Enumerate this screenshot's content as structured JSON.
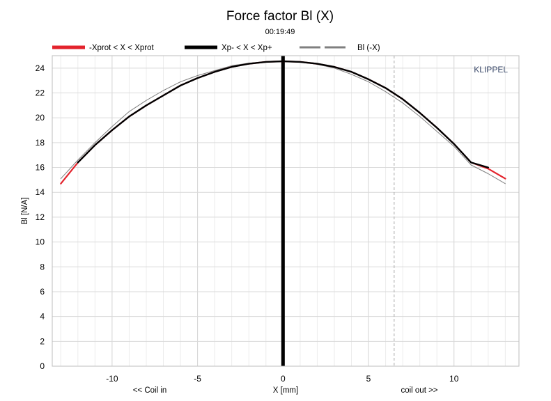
{
  "chart_data": {
    "type": "line",
    "title": "Force factor Bl (X)",
    "subtitle": "00:19:49",
    "brand": "KLIPPEL",
    "xlabel": "X [mm]",
    "ylabel": "Bl [N/A]",
    "x_left_note": "<< Coil in",
    "x_right_note": "coil out >>",
    "xlim": [
      -13.5,
      13.8
    ],
    "ylim": [
      0,
      25
    ],
    "xticks": [
      -10,
      -5,
      0,
      5,
      10
    ],
    "yticks": [
      0,
      2,
      4,
      6,
      8,
      10,
      12,
      14,
      16,
      18,
      20,
      22,
      24
    ],
    "grid": true,
    "legend_position": "top",
    "markers": [
      {
        "x": 0,
        "color": "#000000",
        "style": "solid"
      },
      {
        "x": 6.5,
        "color": "#aaaaaa",
        "style": "dashed"
      }
    ],
    "series": [
      {
        "name": "-Xprot < X < Xprot",
        "color": "#e3232c",
        "x": [
          -13,
          -12,
          -11,
          -10,
          -9,
          -8,
          -7,
          -6,
          -5,
          -4,
          -3,
          -2,
          -1,
          0,
          1,
          2,
          3,
          4,
          5,
          6,
          7,
          8,
          9,
          10,
          11,
          12,
          13
        ],
        "values": [
          14.7,
          16.4,
          17.8,
          19.0,
          20.1,
          21.0,
          21.8,
          22.6,
          23.2,
          23.7,
          24.1,
          24.35,
          24.5,
          24.55,
          24.5,
          24.35,
          24.1,
          23.7,
          23.1,
          22.4,
          21.5,
          20.4,
          19.2,
          17.9,
          16.4,
          15.9,
          15.1
        ]
      },
      {
        "name": "Xp- < X < Xp+",
        "color": "#000000",
        "x": [
          -12,
          -11,
          -10,
          -9,
          -8,
          -7,
          -6,
          -5,
          -4,
          -3,
          -2,
          -1,
          0,
          1,
          2,
          3,
          4,
          5,
          6,
          7,
          8,
          9,
          10,
          11,
          12
        ],
        "values": [
          16.4,
          17.8,
          19.0,
          20.1,
          21.0,
          21.8,
          22.6,
          23.2,
          23.7,
          24.1,
          24.35,
          24.5,
          24.55,
          24.5,
          24.35,
          24.1,
          23.7,
          23.1,
          22.4,
          21.5,
          20.4,
          19.2,
          17.9,
          16.4,
          16.0
        ]
      },
      {
        "name": "Bl (-X)",
        "color": "#7f7f7f",
        "x": [
          -13,
          -12,
          -11,
          -10,
          -9,
          -8,
          -7,
          -6,
          -5,
          -4,
          -3,
          -2,
          -1,
          0,
          1,
          2,
          3,
          4,
          5,
          6,
          7,
          8,
          9,
          10,
          11,
          12,
          13
        ],
        "values": [
          15.1,
          16.6,
          18.0,
          19.3,
          20.5,
          21.4,
          22.2,
          22.9,
          23.4,
          23.8,
          24.2,
          24.4,
          24.5,
          24.55,
          24.5,
          24.3,
          24.0,
          23.5,
          22.9,
          22.1,
          21.2,
          20.1,
          18.9,
          17.7,
          16.2,
          15.5,
          14.7
        ]
      }
    ]
  }
}
